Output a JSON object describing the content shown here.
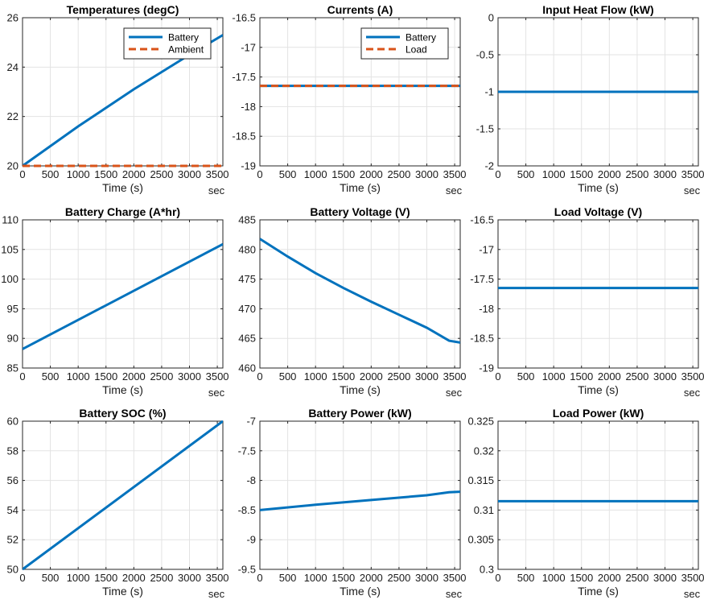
{
  "colors": {
    "battery": "#0072BD",
    "secondary": "#D95319",
    "grid": "#e3e3e3",
    "axis": "#262626"
  },
  "chart_data": [
    {
      "type": "line",
      "title": "Temperatures (degC)",
      "xlabel": "Time (s)",
      "xunit": "sec",
      "xlim": [
        0,
        3600
      ],
      "ylim": [
        20,
        26
      ],
      "xticks": [
        0,
        500,
        1000,
        1500,
        2000,
        2500,
        3000,
        3500
      ],
      "yticks": [
        20,
        22,
        24,
        26
      ],
      "ytick_labels": [
        "20",
        "22",
        "24",
        "26"
      ],
      "legend": "top-right",
      "series": [
        {
          "name": "Battery",
          "style": "solid",
          "color": "#0072BD",
          "x": [
            0,
            1000,
            2000,
            3000,
            3600
          ],
          "y": [
            20.0,
            21.6,
            23.1,
            24.5,
            25.3
          ]
        },
        {
          "name": "Ambient",
          "style": "dashed",
          "color": "#D95319",
          "x": [
            0,
            3600
          ],
          "y": [
            20.0,
            20.0
          ]
        }
      ]
    },
    {
      "type": "line",
      "title": "Currents (A)",
      "xlabel": "Time (s)",
      "xunit": "sec",
      "xlim": [
        0,
        3600
      ],
      "ylim": [
        -19,
        -16.5
      ],
      "xticks": [
        0,
        500,
        1000,
        1500,
        2000,
        2500,
        3000,
        3500
      ],
      "yticks": [
        -19,
        -18.5,
        -18,
        -17.5,
        -17,
        -16.5
      ],
      "ytick_labels": [
        "-19",
        "-18.5",
        "-18",
        "-17.5",
        "-17",
        "-16.5"
      ],
      "legend": "top-right",
      "series": [
        {
          "name": "Battery",
          "style": "solid",
          "color": "#0072BD",
          "x": [
            0,
            3600
          ],
          "y": [
            -17.65,
            -17.65
          ]
        },
        {
          "name": "Load",
          "style": "dashed",
          "color": "#D95319",
          "x": [
            0,
            3600
          ],
          "y": [
            -17.65,
            -17.65
          ]
        }
      ]
    },
    {
      "type": "line",
      "title": "Input Heat Flow (kW)",
      "xlabel": "Time (s)",
      "xunit": "sec",
      "xlim": [
        0,
        3600
      ],
      "ylim": [
        -2,
        0
      ],
      "xticks": [
        0,
        500,
        1000,
        1500,
        2000,
        2500,
        3000,
        3500
      ],
      "yticks": [
        -2,
        -1.5,
        -1,
        -0.5,
        0
      ],
      "ytick_labels": [
        "-2",
        "-1.5",
        "-1",
        "-0.5",
        "0"
      ],
      "series": [
        {
          "style": "solid",
          "color": "#0072BD",
          "x": [
            0,
            3600
          ],
          "y": [
            -1.0,
            -1.0
          ]
        }
      ]
    },
    {
      "type": "line",
      "title": "Battery Charge (A*hr)",
      "xlabel": "Time (s)",
      "xunit": "sec",
      "xlim": [
        0,
        3600
      ],
      "ylim": [
        85,
        110
      ],
      "xticks": [
        0,
        500,
        1000,
        1500,
        2000,
        2500,
        3000,
        3500
      ],
      "yticks": [
        85,
        90,
        95,
        100,
        105,
        110
      ],
      "ytick_labels": [
        "85",
        "90",
        "95",
        "100",
        "105",
        "110"
      ],
      "series": [
        {
          "style": "solid",
          "color": "#0072BD",
          "x": [
            0,
            3600
          ],
          "y": [
            88.2,
            105.9
          ]
        }
      ]
    },
    {
      "type": "line",
      "title": "Battery Voltage (V)",
      "xlabel": "Time (s)",
      "xunit": "sec",
      "xlim": [
        0,
        3600
      ],
      "ylim": [
        460,
        485
      ],
      "xticks": [
        0,
        500,
        1000,
        1500,
        2000,
        2500,
        3000,
        3500
      ],
      "yticks": [
        460,
        465,
        470,
        475,
        480,
        485
      ],
      "ytick_labels": [
        "460",
        "465",
        "470",
        "475",
        "480",
        "485"
      ],
      "series": [
        {
          "style": "solid",
          "color": "#0072BD",
          "x": [
            0,
            500,
            1000,
            1500,
            2000,
            2500,
            3000,
            3400,
            3600
          ],
          "y": [
            481.8,
            478.8,
            476.0,
            473.5,
            471.2,
            469.0,
            466.8,
            464.6,
            464.3
          ]
        }
      ]
    },
    {
      "type": "line",
      "title": "Load Voltage (V)",
      "xlabel": "Time (s)",
      "xunit": "sec",
      "xlim": [
        0,
        3600
      ],
      "ylim": [
        -19,
        -16.5
      ],
      "xticks": [
        0,
        500,
        1000,
        1500,
        2000,
        2500,
        3000,
        3500
      ],
      "yticks": [
        -19,
        -18.5,
        -18,
        -17.5,
        -17,
        -16.5
      ],
      "ytick_labels": [
        "-19",
        "-18.5",
        "-18",
        "-17.5",
        "-17",
        "-16.5"
      ],
      "series": [
        {
          "style": "solid",
          "color": "#0072BD",
          "x": [
            0,
            3600
          ],
          "y": [
            -17.65,
            -17.65
          ]
        }
      ]
    },
    {
      "type": "line",
      "title": "Battery SOC (%)",
      "xlabel": "Time (s)",
      "xunit": "sec",
      "xlim": [
        0,
        3600
      ],
      "ylim": [
        50,
        60
      ],
      "xticks": [
        0,
        500,
        1000,
        1500,
        2000,
        2500,
        3000,
        3500
      ],
      "yticks": [
        50,
        52,
        54,
        56,
        58,
        60
      ],
      "ytick_labels": [
        "50",
        "52",
        "54",
        "56",
        "58",
        "60"
      ],
      "series": [
        {
          "style": "solid",
          "color": "#0072BD",
          "x": [
            0,
            3600
          ],
          "y": [
            50.0,
            60.0
          ]
        }
      ]
    },
    {
      "type": "line",
      "title": "Battery Power (kW)",
      "xlabel": "Time (s)",
      "xunit": "sec",
      "xlim": [
        0,
        3600
      ],
      "ylim": [
        -9.5,
        -7
      ],
      "xticks": [
        0,
        500,
        1000,
        1500,
        2000,
        2500,
        3000,
        3500
      ],
      "yticks": [
        -9.5,
        -9,
        -8.5,
        -8,
        -7.5,
        -7
      ],
      "ytick_labels": [
        "-9.5",
        "-9",
        "-8.5",
        "-8",
        "-7.5",
        "-7"
      ],
      "series": [
        {
          "style": "solid",
          "color": "#0072BD",
          "x": [
            0,
            1000,
            2000,
            3000,
            3400,
            3600
          ],
          "y": [
            -8.5,
            -8.41,
            -8.33,
            -8.25,
            -8.2,
            -8.19
          ]
        }
      ]
    },
    {
      "type": "line",
      "title": "Load Power (kW)",
      "xlabel": "Time (s)",
      "xunit": "sec",
      "xlim": [
        0,
        3600
      ],
      "ylim": [
        0.3,
        0.325
      ],
      "xticks": [
        0,
        500,
        1000,
        1500,
        2000,
        2500,
        3000,
        3500
      ],
      "yticks": [
        0.3,
        0.305,
        0.31,
        0.315,
        0.32,
        0.325
      ],
      "ytick_labels": [
        "0.3",
        "0.305",
        "0.31",
        "0.315",
        "0.32",
        "0.325"
      ],
      "series": [
        {
          "style": "solid",
          "color": "#0072BD",
          "x": [
            0,
            3600
          ],
          "y": [
            0.3115,
            0.3115
          ]
        }
      ]
    }
  ]
}
